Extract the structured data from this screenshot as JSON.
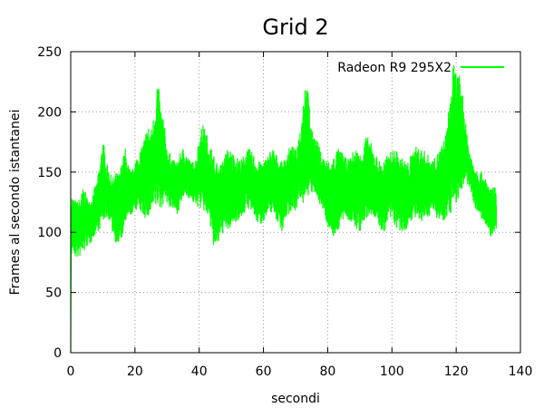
{
  "chart_data": {
    "type": "line",
    "title": "Grid 2",
    "xlabel": "secondi",
    "ylabel": "Frames al secondo istantanei",
    "xlim": [
      0,
      140
    ],
    "ylim": [
      0,
      250
    ],
    "xticks": [
      0,
      20,
      40,
      60,
      80,
      100,
      120,
      140
    ],
    "yticks": [
      0,
      50,
      100,
      150,
      200,
      250
    ],
    "grid": true,
    "legend_position": "top-right",
    "series": [
      {
        "name": "Radeon R9 295X2",
        "color": "#00ff00",
        "x": [
          0,
          0.2,
          0.5,
          1,
          2,
          3,
          4,
          5,
          6,
          7,
          8,
          9,
          10,
          11,
          12,
          13,
          14,
          15,
          16,
          17,
          18,
          19,
          20,
          21,
          22,
          23,
          24,
          25,
          26,
          27,
          28,
          29,
          29.5,
          30,
          31,
          32,
          33,
          34,
          35,
          36,
          37,
          38,
          39,
          40,
          41,
          42,
          43,
          44,
          45,
          46,
          47,
          48,
          49,
          50,
          51,
          52,
          53,
          54,
          55,
          56,
          57,
          58,
          59,
          60,
          61,
          62,
          63,
          64,
          65,
          66,
          67,
          68,
          69,
          70,
          71,
          72,
          73,
          74,
          75,
          76,
          77,
          78,
          79,
          80,
          81,
          82,
          83,
          84,
          85,
          86,
          87,
          88,
          89,
          90,
          91,
          92,
          93,
          94,
          95,
          96,
          97,
          98,
          99,
          100,
          101,
          102,
          103,
          104,
          105,
          106,
          107,
          108,
          109,
          110,
          111,
          112,
          113,
          114,
          115,
          116,
          117,
          118,
          119,
          120,
          121,
          122,
          123,
          124,
          125,
          126,
          127,
          128,
          129,
          130,
          131,
          132,
          132.5
        ],
        "lo": [
          0,
          80,
          85,
          80,
          78,
          80,
          82,
          88,
          90,
          95,
          100,
          102,
          108,
          112,
          110,
          100,
          92,
          88,
          95,
          105,
          112,
          115,
          118,
          120,
          115,
          112,
          110,
          115,
          118,
          120,
          118,
          125,
          130,
          122,
          120,
          118,
          115,
          120,
          128,
          130,
          128,
          125,
          122,
          120,
          118,
          115,
          110,
          95,
          82,
          90,
          98,
          102,
          100,
          105,
          108,
          110,
          112,
          115,
          120,
          118,
          112,
          108,
          105,
          110,
          112,
          115,
          118,
          110,
          105,
          100,
          112,
          115,
          120,
          118,
          125,
          120,
          128,
          130,
          132,
          130,
          128,
          120,
          115,
          105,
          100,
          95,
          100,
          105,
          110,
          112,
          108,
          105,
          102,
          100,
          105,
          110,
          112,
          115,
          110,
          105,
          98,
          102,
          108,
          110,
          105,
          100,
          98,
          100,
          105,
          110,
          112,
          108,
          105,
          110,
          112,
          115,
          118,
          112,
          108,
          110,
          112,
          115,
          118,
          122,
          130,
          135,
          140,
          138,
          130,
          120,
          115,
          110,
          105,
          100,
          95,
          100,
          100
        ],
        "hi": [
          130,
          135,
          130,
          128,
          125,
          130,
          138,
          130,
          125,
          135,
          140,
          155,
          180,
          160,
          150,
          145,
          150,
          148,
          160,
          170,
          155,
          150,
          160,
          165,
          170,
          180,
          190,
          185,
          200,
          230,
          205,
          195,
          180,
          170,
          165,
          160,
          158,
          165,
          170,
          165,
          160,
          158,
          162,
          180,
          190,
          185,
          175,
          170,
          160,
          155,
          158,
          165,
          170,
          168,
          165,
          162,
          160,
          165,
          170,
          168,
          165,
          160,
          158,
          160,
          162,
          168,
          170,
          165,
          160,
          158,
          165,
          170,
          172,
          168,
          180,
          200,
          230,
          215,
          185,
          180,
          175,
          165,
          162,
          160,
          158,
          165,
          170,
          168,
          165,
          160,
          162,
          168,
          170,
          165,
          175,
          180,
          178,
          170,
          165,
          160,
          158,
          162,
          165,
          168,
          170,
          165,
          162,
          160,
          158,
          165,
          170,
          172,
          170,
          168,
          165,
          162,
          160,
          165,
          170,
          175,
          185,
          210,
          240,
          235,
          230,
          215,
          190,
          170,
          160,
          155,
          150,
          150,
          145,
          140,
          135,
          140,
          130
        ]
      }
    ]
  }
}
